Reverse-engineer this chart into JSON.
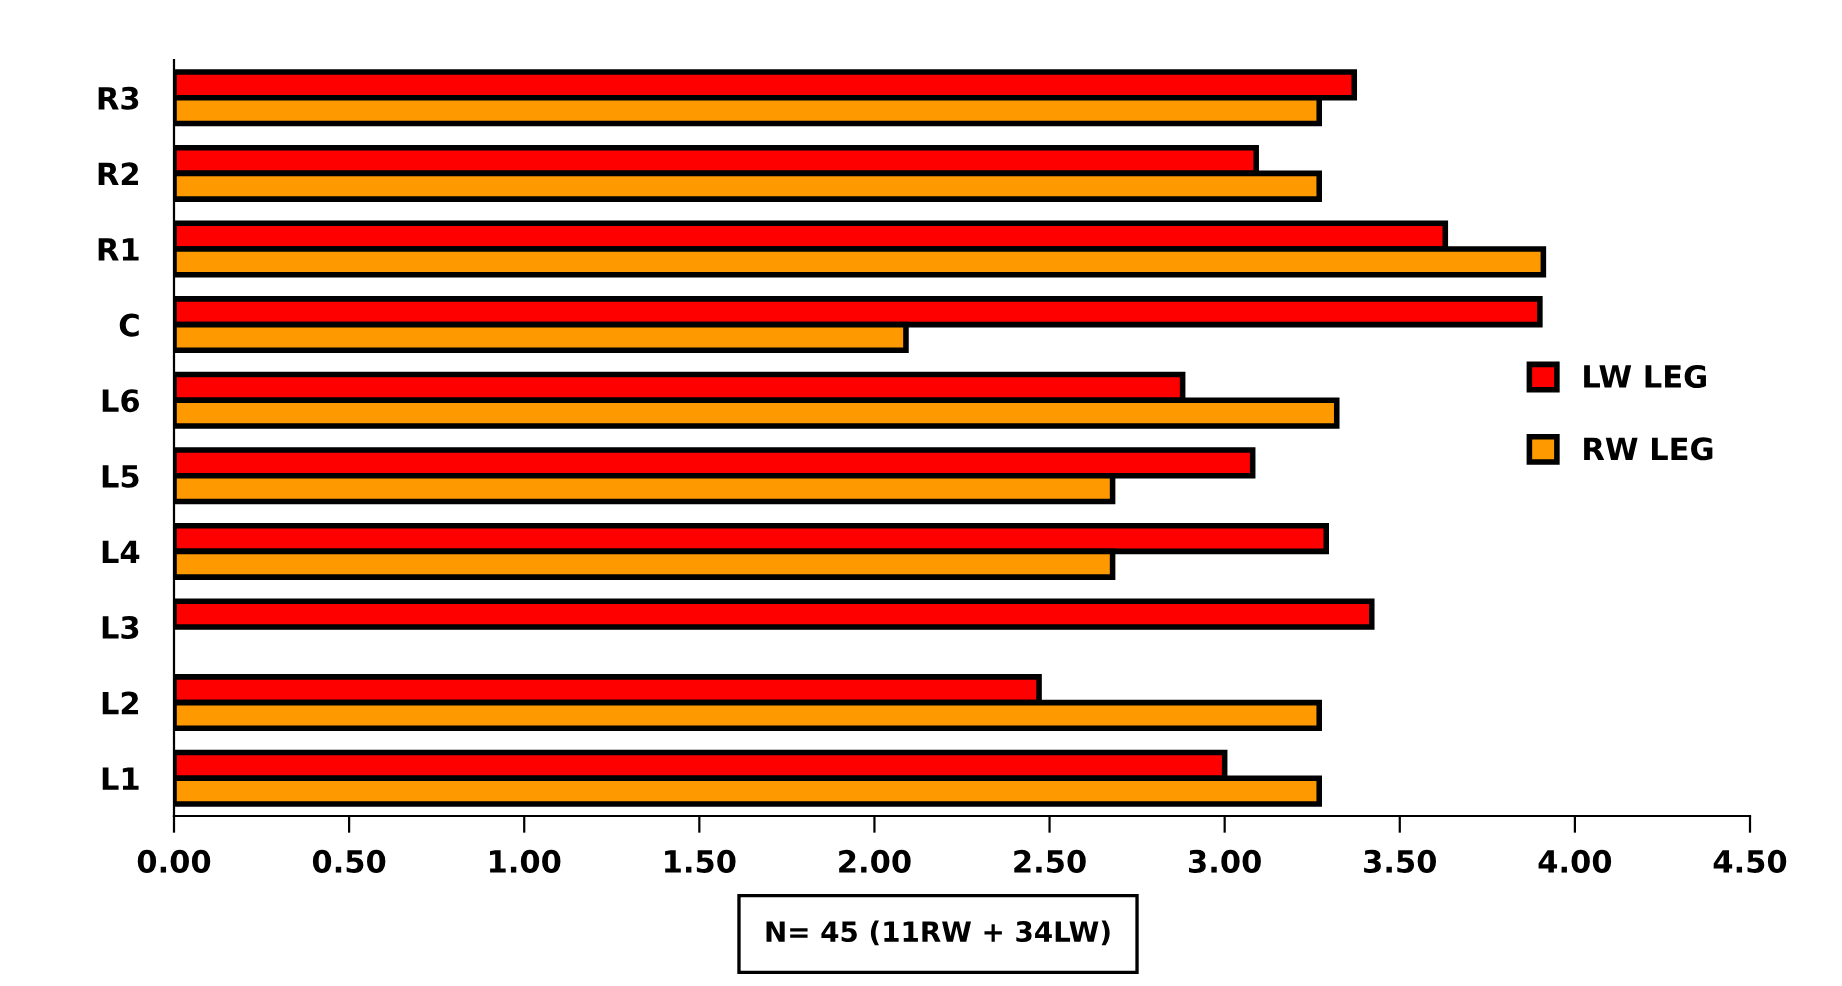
{
  "chart_data": {
    "type": "bar",
    "orientation": "horizontal",
    "categories": [
      "R3",
      "R2",
      "R1",
      "C",
      "L6",
      "L5",
      "L4",
      "L3",
      "L2",
      "L1"
    ],
    "series": [
      {
        "name": "LW LEG",
        "color": "#ff0000",
        "values": [
          3.37,
          3.09,
          3.63,
          3.9,
          2.88,
          3.08,
          3.29,
          3.42,
          2.47,
          3.0
        ]
      },
      {
        "name": "RW LEG",
        "color": "#ff9900",
        "values": [
          3.27,
          3.27,
          3.91,
          2.09,
          3.32,
          2.68,
          2.68,
          null,
          3.27,
          3.27
        ]
      }
    ],
    "xlim": [
      0,
      4.5
    ],
    "xticks": [
      {
        "value": 0,
        "label": "0.00"
      },
      {
        "value": 0.5,
        "label": "0.50"
      },
      {
        "value": 1,
        "label": "1.00"
      },
      {
        "value": 1.5,
        "label": "1.50"
      },
      {
        "value": 2,
        "label": "2.00"
      },
      {
        "value": 2.5,
        "label": "2.50"
      },
      {
        "value": 3,
        "label": "3.00"
      },
      {
        "value": 3.5,
        "label": "3.50"
      },
      {
        "value": 4,
        "label": "4.00"
      },
      {
        "value": 4.5,
        "label": "4.50"
      }
    ],
    "annotations": [
      "N= 45 (11RW + 34LW)"
    ],
    "legend": "right",
    "grid": false
  }
}
